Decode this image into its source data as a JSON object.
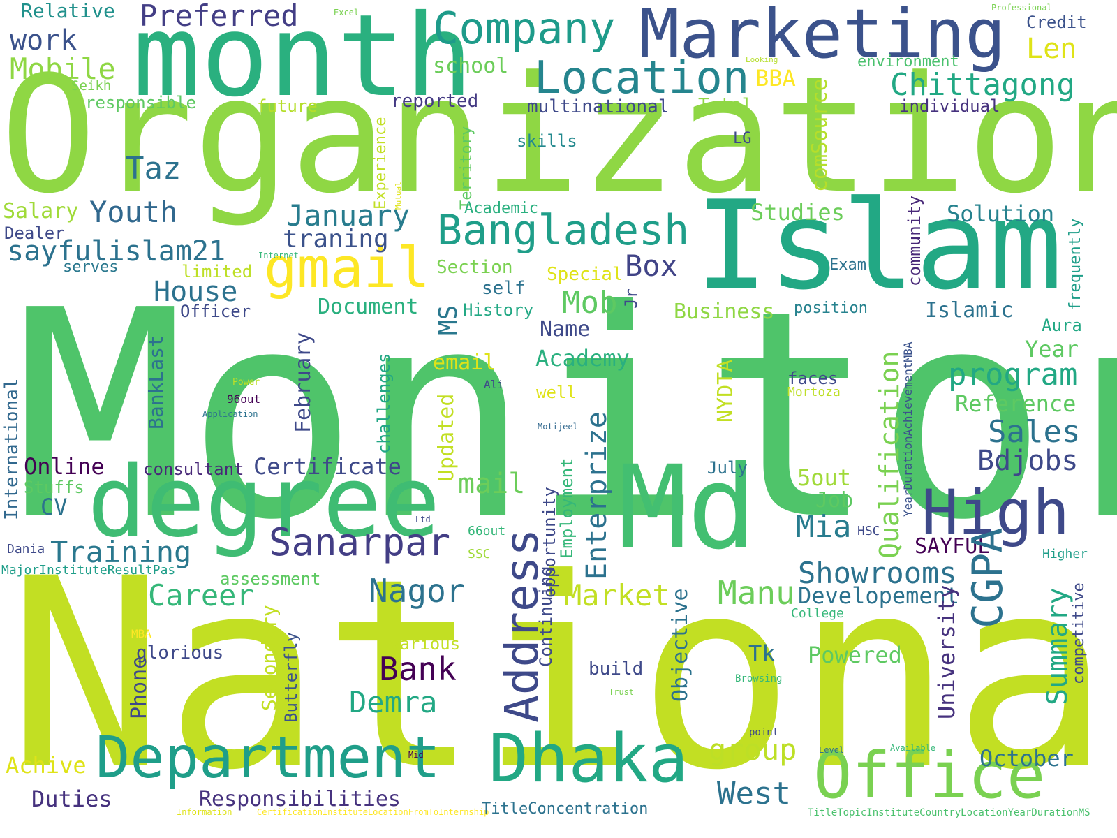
{
  "words": [
    {
      "text": "Monitor",
      "color": "#4fc46a"
    },
    {
      "text": "National",
      "color": "#c2df23"
    },
    {
      "text": "Organization",
      "color": "#8fd744"
    },
    {
      "text": "Islam",
      "color": "#22a884"
    },
    {
      "text": "month",
      "color": "#2ab07f"
    },
    {
      "text": "Md",
      "color": "#43bf71"
    },
    {
      "text": "degree",
      "color": "#3fbc73"
    },
    {
      "text": "Marketing",
      "color": "#3b528b"
    },
    {
      "text": "Department",
      "color": "#1f9e89"
    },
    {
      "text": "Dhaka",
      "color": "#22a884"
    },
    {
      "text": "Office",
      "color": "#7ad151"
    },
    {
      "text": "High",
      "color": "#3e4989"
    },
    {
      "text": "Location",
      "color": "#25858e"
    },
    {
      "text": "Company",
      "color": "#1e9b8a"
    },
    {
      "text": "Bangladesh",
      "color": "#1f9e89"
    },
    {
      "text": "gmail",
      "color": "#fde725"
    },
    {
      "text": "Preferred",
      "color": "#433e85"
    },
    {
      "text": "Mobile",
      "color": "#8fd744"
    },
    {
      "text": "work",
      "color": "#3b528b"
    },
    {
      "text": "Relative",
      "color": "#21918c"
    },
    {
      "text": "Excel",
      "color": "#7ad151"
    },
    {
      "text": "Professional",
      "color": "#7ad151"
    },
    {
      "text": "Credit",
      "color": "#3b528b"
    },
    {
      "text": "Len",
      "color": "#dfe318"
    },
    {
      "text": "Looking",
      "color": "#b5de2b"
    },
    {
      "text": "environment",
      "color": "#4ac16d"
    },
    {
      "text": "Chittagong",
      "color": "#22a884"
    },
    {
      "text": "school",
      "color": "#6ccd5a"
    },
    {
      "text": "BBA",
      "color": "#fde725"
    },
    {
      "text": "Seikh",
      "color": "#7ad151"
    },
    {
      "text": "responsible",
      "color": "#5ec962"
    },
    {
      "text": "future",
      "color": "#b5de2b"
    },
    {
      "text": "reported",
      "color": "#443a83"
    },
    {
      "text": "multinational",
      "color": "#3e4989"
    },
    {
      "text": "Total",
      "color": "#8fd744"
    },
    {
      "text": "individual",
      "color": "#46327e"
    },
    {
      "text": "comSource",
      "color": "#b5de2b"
    },
    {
      "text": "Experience",
      "color": "#c2df23"
    },
    {
      "text": "Mutual",
      "color": "#dfe318"
    },
    {
      "text": "Territory",
      "color": "#5ec962"
    },
    {
      "text": "skills",
      "color": "#23898e"
    },
    {
      "text": "LG",
      "color": "#3e4989"
    },
    {
      "text": "Taz",
      "color": "#2c728e"
    },
    {
      "text": "Youth",
      "color": "#31688e"
    },
    {
      "text": "Salary",
      "color": "#a0da39"
    },
    {
      "text": "Dealer",
      "color": "#3e4989"
    },
    {
      "text": "January",
      "color": "#287c8e"
    },
    {
      "text": "traning",
      "color": "#3b528b"
    },
    {
      "text": "sayfulislam21",
      "color": "#2c728e"
    },
    {
      "text": "serves",
      "color": "#2a788e"
    },
    {
      "text": "Internet",
      "color": "#35b779"
    },
    {
      "text": "limited",
      "color": "#bddf26"
    },
    {
      "text": "Academic",
      "color": "#2ab07f"
    },
    {
      "text": "Section",
      "color": "#7ad151"
    },
    {
      "text": "Special",
      "color": "#dfe318"
    },
    {
      "text": "self",
      "color": "#2c728e"
    },
    {
      "text": "Box",
      "color": "#414487"
    },
    {
      "text": "Studies",
      "color": "#6ccd5a"
    },
    {
      "text": "community",
      "color": "#482878"
    },
    {
      "text": "Exam",
      "color": "#2c728e"
    },
    {
      "text": "Solution",
      "color": "#26828e"
    },
    {
      "text": "frequently",
      "color": "#1f9e89"
    },
    {
      "text": "House",
      "color": "#2c728e"
    },
    {
      "text": "Officer",
      "color": "#3e4989"
    },
    {
      "text": "Document",
      "color": "#2ab07f"
    },
    {
      "text": "History",
      "color": "#22a884"
    },
    {
      "text": "Mob",
      "color": "#5ec962"
    },
    {
      "text": "Jr",
      "color": "#3e4989"
    },
    {
      "text": "Business",
      "color": "#8fd744"
    },
    {
      "text": "position",
      "color": "#26828e"
    },
    {
      "text": "Islamic",
      "color": "#2c728e"
    },
    {
      "text": "Aura",
      "color": "#22a884"
    },
    {
      "text": "Year",
      "color": "#5ec962"
    },
    {
      "text": "International",
      "color": "#31688e"
    },
    {
      "text": "BankLast",
      "color": "#2c728e"
    },
    {
      "text": "February",
      "color": "#3e4989"
    },
    {
      "text": "MS",
      "color": "#2a788e"
    },
    {
      "text": "Name",
      "color": "#3e4989"
    },
    {
      "text": "Academy",
      "color": "#2ab07f"
    },
    {
      "text": "email",
      "color": "#dfe318"
    },
    {
      "text": "Updated",
      "color": "#c2df23"
    },
    {
      "text": "challenges",
      "color": "#21a685"
    },
    {
      "text": "NYDTA",
      "color": "#c2df23"
    },
    {
      "text": "Qualification",
      "color": "#7ad151"
    },
    {
      "text": "program",
      "color": "#22a884"
    },
    {
      "text": "YearDurationAchievementMBA",
      "color": "#3b528b"
    },
    {
      "text": "faces",
      "color": "#3e4989"
    },
    {
      "text": "Mortoza",
      "color": "#bddf26"
    },
    {
      "text": "Reference",
      "color": "#5ec962"
    },
    {
      "text": "Sales",
      "color": "#2c728e"
    },
    {
      "text": "Bdjobs",
      "color": "#3e4989"
    },
    {
      "text": "Enterprize",
      "color": "#2c728e"
    },
    {
      "text": "Ali",
      "color": "#3e4989"
    },
    {
      "text": "well",
      "color": "#dfe318"
    },
    {
      "text": "Motijeel",
      "color": "#31688e"
    },
    {
      "text": "Power",
      "color": "#bddf26"
    },
    {
      "text": "96out",
      "color": "#440154"
    },
    {
      "text": "Application",
      "color": "#2c728e"
    },
    {
      "text": "Online",
      "color": "#440154"
    },
    {
      "text": "consultant",
      "color": "#482878"
    },
    {
      "text": "Certificate",
      "color": "#3e4989"
    },
    {
      "text": "mail",
      "color": "#6ccd5a"
    },
    {
      "text": "July",
      "color": "#2c728e"
    },
    {
      "text": "5out",
      "color": "#a0da39"
    },
    {
      "text": "Job",
      "color": "#5ec962"
    },
    {
      "text": "Mia",
      "color": "#287c8e"
    },
    {
      "text": "Stuffs",
      "color": "#5ec962"
    },
    {
      "text": "CV",
      "color": "#2c728e"
    },
    {
      "text": "Ltd",
      "color": "#3e4989"
    },
    {
      "text": "Address",
      "color": "#3e4989"
    },
    {
      "text": "Employment",
      "color": "#35b779"
    },
    {
      "text": "opportunity",
      "color": "#3e4989"
    },
    {
      "text": "Continuing",
      "color": "#3e4989"
    },
    {
      "text": "66out",
      "color": "#35b779"
    },
    {
      "text": "HSC",
      "color": "#3e4989"
    },
    {
      "text": "SAYFUL",
      "color": "#440154"
    },
    {
      "text": "Higher",
      "color": "#1f9e89"
    },
    {
      "text": "Dania",
      "color": "#3e4989"
    },
    {
      "text": "Training",
      "color": "#2a788e"
    },
    {
      "text": "Sanarpar",
      "color": "#433e85"
    },
    {
      "text": "SSC",
      "color": "#a0da39"
    },
    {
      "text": "MajorInstituteResultPas",
      "color": "#1f9e89"
    },
    {
      "text": "assessment",
      "color": "#5ec962"
    },
    {
      "text": "Showrooms",
      "color": "#2c728e"
    },
    {
      "text": "Developement",
      "color": "#2c728e"
    },
    {
      "text": "Nagor",
      "color": "#2c728e"
    },
    {
      "text": "Career",
      "color": "#35b779"
    },
    {
      "text": "Market",
      "color": "#c2df23"
    },
    {
      "text": "Manu",
      "color": "#6ccd5a"
    },
    {
      "text": "CGPA",
      "color": "#2c728e"
    },
    {
      "text": "University",
      "color": "#46327e"
    },
    {
      "text": "Summary",
      "color": "#22a884"
    },
    {
      "text": "competitive",
      "color": "#3e4989"
    },
    {
      "text": "College",
      "color": "#35b779"
    },
    {
      "text": "MBA",
      "color": "#fde725"
    },
    {
      "text": "various",
      "color": "#c2df23"
    },
    {
      "text": "glorious",
      "color": "#3e4989"
    },
    {
      "text": "Secondary",
      "color": "#c2df23"
    },
    {
      "text": "Butterfly",
      "color": "#3b528b"
    },
    {
      "text": "Objective",
      "color": "#2c728e"
    },
    {
      "text": "Tk",
      "color": "#2c728e"
    },
    {
      "text": "Powered",
      "color": "#5ec962"
    },
    {
      "text": "Bank",
      "color": "#440154"
    },
    {
      "text": "build",
      "color": "#3e4989"
    },
    {
      "text": "Trust",
      "color": "#7ad151"
    },
    {
      "text": "Browsing",
      "color": "#35b779"
    },
    {
      "text": "Demra",
      "color": "#22a884"
    },
    {
      "text": "Phone",
      "color": "#3e4989"
    },
    {
      "text": "group",
      "color": "#bddf26"
    },
    {
      "text": "West",
      "color": "#2c728e"
    },
    {
      "text": "October",
      "color": "#2c728e"
    },
    {
      "text": "Achive",
      "color": "#dfe318"
    },
    {
      "text": "Duties",
      "color": "#46327e"
    },
    {
      "text": "Responsibilities",
      "color": "#46327e"
    },
    {
      "text": "Mid",
      "color": "#440154"
    },
    {
      "text": "point",
      "color": "#3e4989"
    },
    {
      "text": "Level",
      "color": "#2c728e"
    },
    {
      "text": "Available",
      "color": "#35b779"
    },
    {
      "text": "Information",
      "color": "#dfe318"
    },
    {
      "text": "CertificationInstituteLocationFromToInternship",
      "color": "#fde725"
    },
    {
      "text": "TitleConcentration",
      "color": "#2c728e"
    },
    {
      "text": "TitleTopicInstituteCountryLocationYearDurationMS",
      "color": "#4ac16d"
    }
  ]
}
